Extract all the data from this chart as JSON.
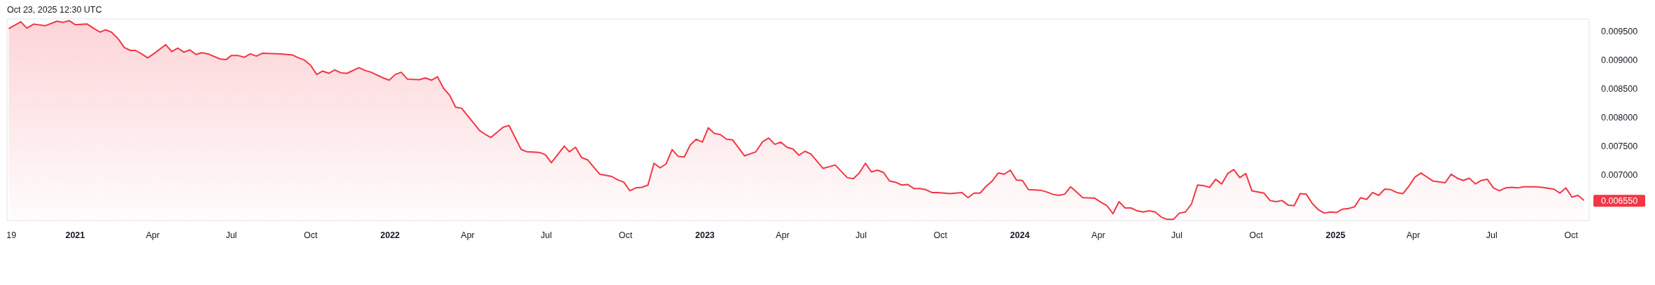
{
  "chart_data": {
    "type": "area",
    "annotations": [
      "Oct 23, 2025 12:30 UTC",
      {
        "text": "0.006550",
        "x": "2025-10-16",
        "y": 0.00655
      }
    ],
    "series": [
      {
        "color": "#f23645",
        "x": [
          "2020-10-16",
          "2020-10-30",
          "2020-11-06",
          "2020-11-14",
          "2020-11-27",
          "2020-12-11",
          "2020-12-18",
          "2020-12-25",
          "2021-01-01",
          "2021-01-15",
          "2021-01-23",
          "2021-01-30",
          "2021-02-05",
          "2021-02-12",
          "2021-02-20",
          "2021-02-27",
          "2021-03-06",
          "2021-03-12",
          "2021-03-19",
          "2021-03-26",
          "2021-04-02",
          "2021-04-16",
          "2021-04-23",
          "2021-04-30",
          "2021-05-07",
          "2021-05-14",
          "2021-05-21",
          "2021-05-28",
          "2021-06-04",
          "2021-06-18",
          "2021-06-25",
          "2021-07-01",
          "2021-07-09",
          "2021-07-16",
          "2021-07-23",
          "2021-07-30",
          "2021-08-06",
          "2021-08-27",
          "2021-09-10",
          "2021-09-17",
          "2021-09-24",
          "2021-10-01",
          "2021-10-08",
          "2021-10-15",
          "2021-10-22",
          "2021-10-29",
          "2021-11-05",
          "2021-11-12",
          "2021-11-26",
          "2021-12-03",
          "2021-12-10",
          "2021-12-24",
          "2021-12-31",
          "2022-01-07",
          "2022-01-14",
          "2022-01-21",
          "2022-02-04",
          "2022-02-11",
          "2022-02-18",
          "2022-02-25",
          "2022-03-04",
          "2022-03-11",
          "2022-03-18",
          "2022-03-25",
          "2022-04-15",
          "2022-04-22",
          "2022-04-28",
          "2022-05-12",
          "2022-05-19",
          "2022-06-02",
          "2022-06-09",
          "2022-06-23",
          "2022-06-30",
          "2022-07-07",
          "2022-07-22",
          "2022-07-28",
          "2022-08-04",
          "2022-08-11",
          "2022-08-18",
          "2022-09-01",
          "2022-09-15",
          "2022-09-22",
          "2022-09-29",
          "2022-10-06",
          "2022-10-13",
          "2022-10-20",
          "2022-10-27",
          "2022-11-03",
          "2022-11-10",
          "2022-11-17",
          "2022-11-24",
          "2022-12-01",
          "2022-12-08",
          "2022-12-15",
          "2022-12-22",
          "2022-12-29",
          "2023-01-05",
          "2023-01-12",
          "2023-01-19",
          "2023-01-26",
          "2023-02-02",
          "2023-02-16",
          "2023-03-01",
          "2023-03-09",
          "2023-03-16",
          "2023-03-23",
          "2023-03-30",
          "2023-04-06",
          "2023-04-13",
          "2023-04-20",
          "2023-04-27",
          "2023-05-04",
          "2023-05-18",
          "2023-06-01",
          "2023-06-15",
          "2023-06-22",
          "2023-06-29",
          "2023-07-06",
          "2023-07-13",
          "2023-07-20",
          "2023-07-27",
          "2023-08-03",
          "2023-08-10",
          "2023-08-17",
          "2023-08-24",
          "2023-08-31",
          "2023-09-07",
          "2023-09-14",
          "2023-09-21",
          "2023-09-28",
          "2023-10-12",
          "2023-10-26",
          "2023-11-02",
          "2023-11-09",
          "2023-11-16",
          "2023-11-23",
          "2023-11-30",
          "2023-12-07",
          "2023-12-14",
          "2023-12-21",
          "2023-12-28",
          "2024-01-04",
          "2024-01-11",
          "2024-01-25",
          "2024-02-01",
          "2024-02-08",
          "2024-02-15",
          "2024-02-22",
          "2024-02-29",
          "2024-03-14",
          "2024-03-28",
          "2024-04-04",
          "2024-04-11",
          "2024-04-18",
          "2024-04-25",
          "2024-05-02",
          "2024-05-09",
          "2024-05-16",
          "2024-05-23",
          "2024-05-30",
          "2024-06-06",
          "2024-06-13",
          "2024-06-20",
          "2024-06-27",
          "2024-07-04",
          "2024-07-11",
          "2024-07-18",
          "2024-07-25",
          "2024-08-01",
          "2024-08-08",
          "2024-08-15",
          "2024-08-22",
          "2024-08-29",
          "2024-09-05",
          "2024-09-12",
          "2024-09-19",
          "2024-09-26",
          "2024-10-10",
          "2024-10-17",
          "2024-10-24",
          "2024-10-31",
          "2024-11-07",
          "2024-11-14",
          "2024-11-21",
          "2024-11-28",
          "2024-12-05",
          "2024-12-12",
          "2024-12-19",
          "2024-12-26",
          "2025-01-02",
          "2025-01-09",
          "2025-01-16",
          "2025-01-23",
          "2025-01-30",
          "2025-02-06",
          "2025-02-13",
          "2025-02-20",
          "2025-02-27",
          "2025-03-06",
          "2025-03-13",
          "2025-03-20",
          "2025-03-27",
          "2025-04-03",
          "2025-04-10",
          "2025-04-24",
          "2025-05-08",
          "2025-05-15",
          "2025-05-22",
          "2025-05-29",
          "2025-06-05",
          "2025-06-12",
          "2025-06-19",
          "2025-06-26",
          "2025-07-03",
          "2025-07-10",
          "2025-07-17",
          "2025-07-24",
          "2025-07-31",
          "2025-08-07",
          "2025-08-21",
          "2025-08-28",
          "2025-09-11",
          "2025-09-18",
          "2025-09-25",
          "2025-10-02",
          "2025-10-09",
          "2025-10-16"
        ],
        "values": [
          0.00955,
          0.00967,
          0.00956,
          0.00963,
          0.0096,
          0.00968,
          0.00966,
          0.00969,
          0.00962,
          0.00963,
          0.00955,
          0.00949,
          0.00953,
          0.00949,
          0.00937,
          0.00922,
          0.00917,
          0.00917,
          0.00911,
          0.00904,
          0.00911,
          0.00927,
          0.00915,
          0.00921,
          0.00914,
          0.00918,
          0.0091,
          0.00913,
          0.00911,
          0.00902,
          0.00901,
          0.00908,
          0.00908,
          0.00905,
          0.00911,
          0.00907,
          0.00912,
          0.00911,
          0.00909,
          0.00904,
          0.009,
          0.00891,
          0.00875,
          0.00881,
          0.00877,
          0.00883,
          0.00878,
          0.00877,
          0.00887,
          0.00882,
          0.00879,
          0.00869,
          0.00865,
          0.00875,
          0.00879,
          0.00867,
          0.00866,
          0.00869,
          0.00865,
          0.00871,
          0.00851,
          0.00839,
          0.00818,
          0.00816,
          0.00777,
          0.0077,
          0.00765,
          0.00783,
          0.00786,
          0.00744,
          0.0074,
          0.00739,
          0.00735,
          0.00721,
          0.0075,
          0.0074,
          0.00748,
          0.0073,
          0.00726,
          0.00701,
          0.00697,
          0.00691,
          0.00687,
          0.00672,
          0.00677,
          0.00678,
          0.00682,
          0.0072,
          0.00712,
          0.00719,
          0.00744,
          0.00732,
          0.00731,
          0.00752,
          0.00762,
          0.00757,
          0.00782,
          0.00772,
          0.0077,
          0.00762,
          0.00761,
          0.00733,
          0.0074,
          0.00758,
          0.00764,
          0.00753,
          0.00757,
          0.00748,
          0.00745,
          0.00734,
          0.00741,
          0.00736,
          0.00711,
          0.00717,
          0.00695,
          0.00693,
          0.00703,
          0.0072,
          0.00705,
          0.00708,
          0.00704,
          0.00689,
          0.00687,
          0.00682,
          0.00683,
          0.00676,
          0.00676,
          0.00674,
          0.00669,
          0.00669,
          0.00667,
          0.00669,
          0.0066,
          0.00668,
          0.00668,
          0.0068,
          0.00689,
          0.00703,
          0.00701,
          0.00708,
          0.00691,
          0.0069,
          0.00674,
          0.00673,
          0.0067,
          0.00666,
          0.00664,
          0.00666,
          0.00679,
          0.0066,
          0.00659,
          0.00652,
          0.00646,
          0.00632,
          0.00653,
          0.00642,
          0.00642,
          0.00637,
          0.00635,
          0.00637,
          0.00635,
          0.00626,
          0.00622,
          0.00622,
          0.00633,
          0.00635,
          0.00649,
          0.00682,
          0.00681,
          0.00678,
          0.00692,
          0.00684,
          0.00702,
          0.00709,
          0.00695,
          0.00702,
          0.00672,
          0.00668,
          0.00655,
          0.00653,
          0.00655,
          0.00647,
          0.00646,
          0.00667,
          0.00666,
          0.0065,
          0.00639,
          0.00633,
          0.00635,
          0.00634,
          0.0064,
          0.00641,
          0.00644,
          0.0066,
          0.00657,
          0.00669,
          0.00664,
          0.00675,
          0.00674,
          0.00669,
          0.00667,
          0.0068,
          0.00696,
          0.00703,
          0.00689,
          0.00686,
          0.00701,
          0.00694,
          0.0069,
          0.00694,
          0.00684,
          0.0069,
          0.00692,
          0.00677,
          0.00672,
          0.00677,
          0.00678,
          0.00677,
          0.00679,
          0.00679,
          0.00678,
          0.00675,
          0.00668,
          0.00677,
          0.00661,
          0.00664,
          0.00655
        ]
      }
    ],
    "xlim": [
      "2020-10-14",
      "2025-10-22"
    ],
    "xticks": [
      {
        "value": "2020-10-19",
        "label": "19"
      },
      {
        "value": "2021",
        "label": "2021"
      },
      {
        "value": "2021-04",
        "label": "Apr"
      },
      {
        "value": "2021-07",
        "label": "Jul"
      },
      {
        "value": "2021-10",
        "label": "Oct"
      },
      {
        "value": "2022",
        "label": "2022"
      },
      {
        "value": "2022-04",
        "label": "Apr"
      },
      {
        "value": "2022-07",
        "label": "Jul"
      },
      {
        "value": "2022-10",
        "label": "Oct"
      },
      {
        "value": "2023",
        "label": "2023"
      },
      {
        "value": "2023-04",
        "label": "Apr"
      },
      {
        "value": "2023-07",
        "label": "Jul"
      },
      {
        "value": "2023-10",
        "label": "Oct"
      },
      {
        "value": "2024",
        "label": "2024"
      },
      {
        "value": "2024-04",
        "label": "Apr"
      },
      {
        "value": "2024-07",
        "label": "Jul"
      },
      {
        "value": "2024-10",
        "label": "Oct"
      },
      {
        "value": "2025",
        "label": "2025"
      },
      {
        "value": "2025-04",
        "label": "Apr"
      },
      {
        "value": "2025-07",
        "label": "Jul"
      },
      {
        "value": "2025-10",
        "label": "Oct"
      }
    ],
    "ylim": [
      0.0062,
      0.00972
    ],
    "yticks": [
      {
        "value": 0.007,
        "label": "0.007000"
      },
      {
        "value": 0.0075,
        "label": "0.007500"
      },
      {
        "value": 0.008,
        "label": "0.008000"
      },
      {
        "value": 0.0085,
        "label": "0.008500"
      },
      {
        "value": 0.009,
        "label": "0.009000"
      },
      {
        "value": 0.0095,
        "label": "0.009500"
      }
    ],
    "grid": false
  }
}
